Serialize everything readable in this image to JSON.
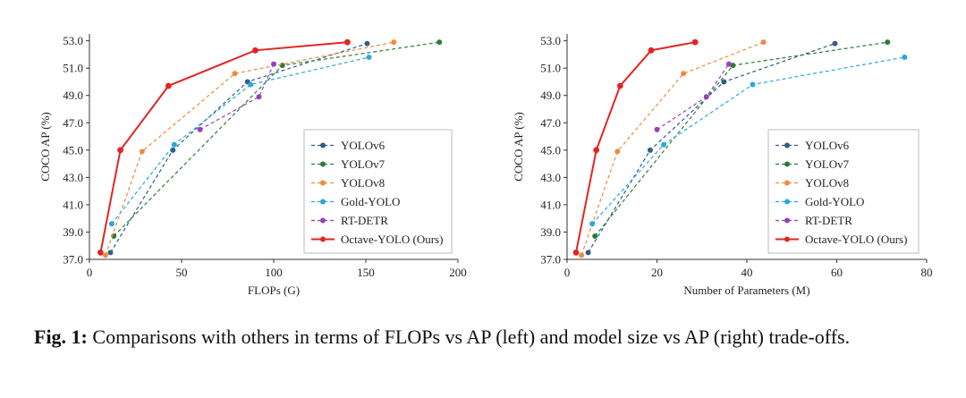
{
  "chart_data": [
    {
      "type": "line",
      "xlabel": "FLOPs (G)",
      "ylabel": "COCO AP (%)",
      "xlim": [
        0,
        200
      ],
      "ylim": [
        37,
        53.5
      ],
      "xticks": [
        0,
        50,
        100,
        150,
        200
      ],
      "yticks": [
        "37.0",
        "39.0",
        "41.0",
        "43.0",
        "45.0",
        "47.0",
        "49.0",
        "51.0",
        "53.0"
      ],
      "legend_position": "bottom-right",
      "series": [
        {
          "name": "YOLOv6",
          "color": "#2e5f86",
          "dashed": true,
          "x": [
            11.4,
            45.3,
            85.8,
            150.7
          ],
          "y": [
            37.5,
            45.0,
            50.0,
            52.8
          ]
        },
        {
          "name": "YOLOv7",
          "color": "#2f7a36",
          "dashed": true,
          "x": [
            13.2,
            104.7,
            189.9
          ],
          "y": [
            38.7,
            51.2,
            52.9
          ]
        },
        {
          "name": "YOLOv8",
          "color": "#f08a3e",
          "dashed": true,
          "x": [
            8.7,
            28.6,
            78.9,
            165.2
          ],
          "y": [
            37.3,
            44.9,
            50.6,
            52.9
          ]
        },
        {
          "name": "Gold-YOLO",
          "color": "#27a9dc",
          "dashed": true,
          "x": [
            12.1,
            46.0,
            87.5,
            151.7
          ],
          "y": [
            39.6,
            45.4,
            49.8,
            51.8
          ]
        },
        {
          "name": "RT-DETR",
          "color": "#9b3fb8",
          "dashed": true,
          "x": [
            60.0,
            92.0,
            100.0
          ],
          "y": [
            46.5,
            48.9,
            51.3
          ]
        },
        {
          "name": "Octave-YOLO (Ours)",
          "color": "#e32424",
          "dashed": false,
          "x": [
            6.0,
            16.8,
            42.9,
            90.0,
            140.0
          ],
          "y": [
            37.5,
            45.0,
            49.7,
            52.3,
            52.9
          ]
        }
      ]
    },
    {
      "type": "line",
      "xlabel": "Number of Parameters (M)",
      "ylabel": "COCO AP (%)",
      "xlim": [
        0,
        80
      ],
      "ylim": [
        37,
        53.5
      ],
      "xticks": [
        0,
        20,
        40,
        60,
        80
      ],
      "yticks": [
        "37.0",
        "39.0",
        "41.0",
        "43.0",
        "45.0",
        "47.0",
        "49.0",
        "51.0",
        "53.0"
      ],
      "legend_position": "bottom-right",
      "series": [
        {
          "name": "YOLOv6",
          "color": "#2e5f86",
          "dashed": true,
          "x": [
            4.7,
            18.5,
            34.9,
            59.6
          ],
          "y": [
            37.5,
            45.0,
            50.0,
            52.8
          ]
        },
        {
          "name": "YOLOv7",
          "color": "#2f7a36",
          "dashed": true,
          "x": [
            6.2,
            36.9,
            71.3
          ],
          "y": [
            38.7,
            51.2,
            52.9
          ]
        },
        {
          "name": "YOLOv8",
          "color": "#f08a3e",
          "dashed": true,
          "x": [
            3.2,
            11.2,
            25.9,
            43.7
          ],
          "y": [
            37.3,
            44.9,
            50.6,
            52.9
          ]
        },
        {
          "name": "Gold-YOLO",
          "color": "#27a9dc",
          "dashed": true,
          "x": [
            5.6,
            21.5,
            41.3,
            75.1
          ],
          "y": [
            39.6,
            45.4,
            49.8,
            51.8
          ]
        },
        {
          "name": "RT-DETR",
          "color": "#9b3fb8",
          "dashed": true,
          "x": [
            20.0,
            31.0,
            36.0
          ],
          "y": [
            46.5,
            48.9,
            51.3
          ]
        },
        {
          "name": "Octave-YOLO (Ours)",
          "color": "#e32424",
          "dashed": false,
          "x": [
            2.0,
            6.5,
            11.8,
            18.7,
            28.5
          ],
          "y": [
            37.5,
            45.0,
            49.7,
            52.3,
            52.9
          ]
        }
      ]
    }
  ],
  "caption": {
    "label": "Fig. 1:",
    "text": "Comparisons with others in terms of FLOPs vs AP (left) and model size vs AP (right) trade-offs."
  }
}
